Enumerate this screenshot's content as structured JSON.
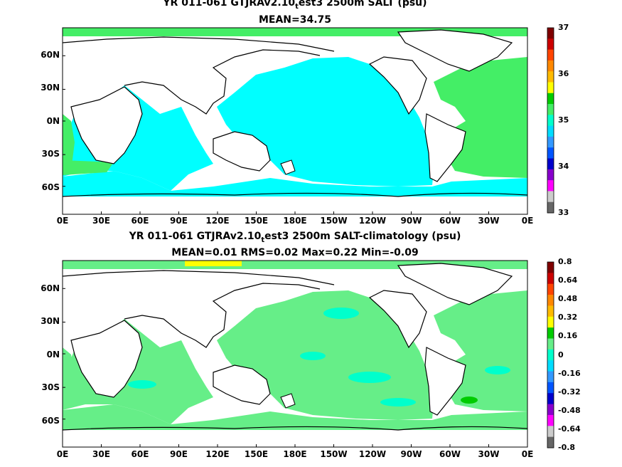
{
  "panels": [
    {
      "title_pre": "YR 011-061 GTJRAv2.10",
      "title_sub": "t",
      "title_post": "est3 2500m SALT (psu)",
      "subtitle": "MEAN=34.75",
      "colorbar_labels": [
        "37",
        "36",
        "35",
        "34",
        "33"
      ],
      "colorbar_colors": [
        "#7f0000",
        "#cc0000",
        "#ff4400",
        "#ff8800",
        "#ffbb00",
        "#ffff00",
        "#00cc00",
        "#44ee66",
        "#00ffcc",
        "#00ddff",
        "#3399ff",
        "#0055ff",
        "#0000cc",
        "#8800cc",
        "#ff00ff",
        "#cccccc",
        "#666666"
      ]
    },
    {
      "title_pre": "YR 011-061 GTJRAv2.10",
      "title_sub": "t",
      "title_post": "est3 2500m SALT-climatology (psu)",
      "subtitle": "MEAN=0.01   RMS=0.02   Max=0.22   Min=-0.09",
      "colorbar_labels": [
        "0.8",
        "0.64",
        "0.48",
        "0.32",
        "0.16",
        "0",
        "-0.16",
        "-0.32",
        "-0.48",
        "-0.64",
        "-0.8"
      ],
      "colorbar_colors": [
        "#7f0000",
        "#cc0000",
        "#ff4400",
        "#ff8800",
        "#ffbb00",
        "#ffff00",
        "#00cc00",
        "#66ee88",
        "#00ffcc",
        "#00ddff",
        "#3399ff",
        "#0055ff",
        "#0000cc",
        "#8800cc",
        "#ff00ff",
        "#cccccc",
        "#666666"
      ]
    }
  ],
  "x_ticks": [
    "0E",
    "30E",
    "60E",
    "90E",
    "120E",
    "150E",
    "180E",
    "150W",
    "120W",
    "90W",
    "60W",
    "30W",
    "0E"
  ],
  "y_ticks": [
    "60N",
    "30N",
    "0N",
    "30S",
    "60S"
  ]
}
